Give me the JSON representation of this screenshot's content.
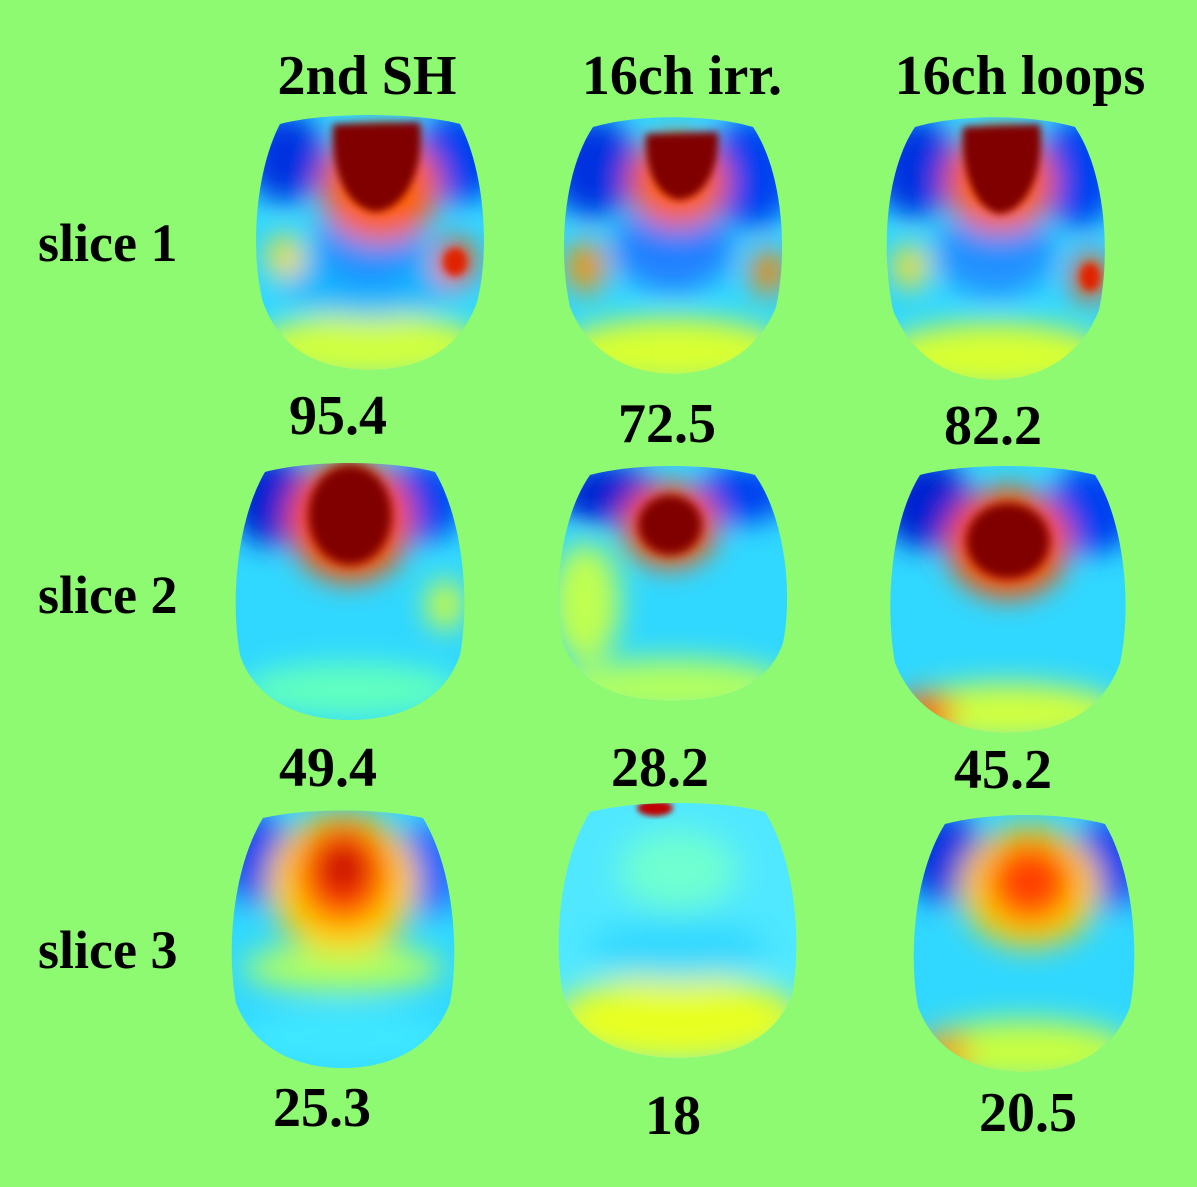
{
  "columns": [
    "2nd SH",
    "16ch irr.",
    "16ch loops"
  ],
  "rows": [
    "slice 1",
    "slice 2",
    "slice 3"
  ],
  "values": [
    [
      "95.4",
      "72.5",
      "82.2"
    ],
    [
      "49.4",
      "28.2",
      "45.2"
    ],
    [
      "25.3",
      "18",
      "20.5"
    ]
  ],
  "colors": {
    "background": "#8dfa72",
    "colormap": [
      "#00008f",
      "#0050ff",
      "#00d0ff",
      "#80ffd0",
      "#ffff00",
      "#ff8000",
      "#d00000",
      "#800000"
    ]
  }
}
